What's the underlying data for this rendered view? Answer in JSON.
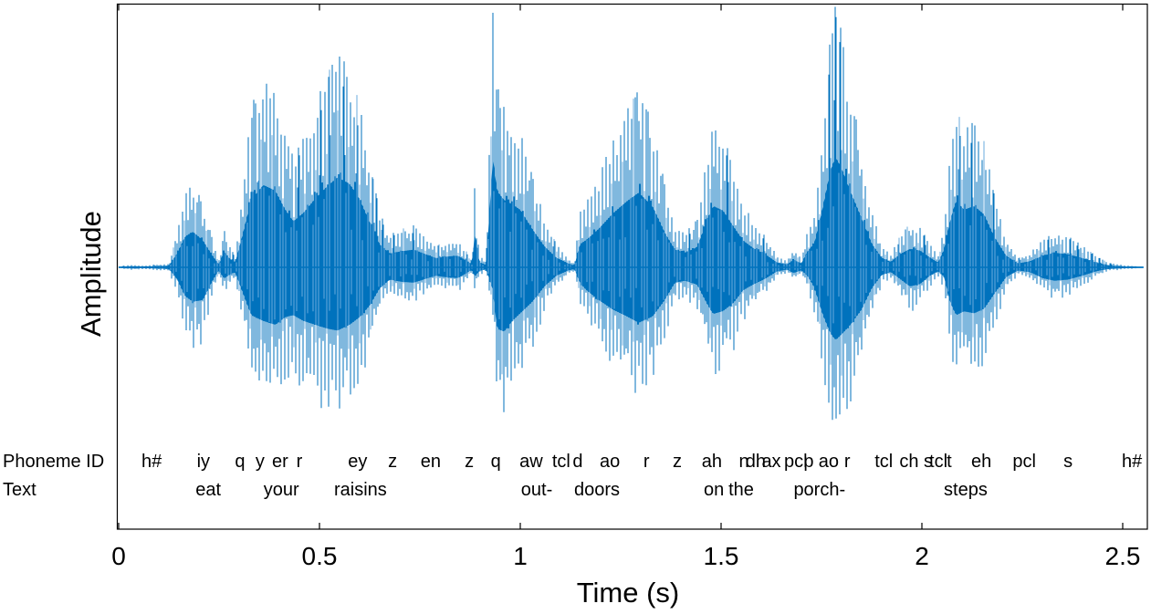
{
  "figure": {
    "background": "#ffffff",
    "border_color": "#000000",
    "text_color": "#000000",
    "waveform_color": "#0072BD",
    "waveform_light_color": "#6aabdd"
  },
  "annotation": {
    "phoneme_header": "Phoneme ID",
    "text_header": "Text"
  },
  "chart_data": {
    "type": "line",
    "subtype": "speech-audio-waveform-with-phoneme-alignment",
    "title": "",
    "xlabel": "Time (s)",
    "ylabel": "Amplitude",
    "xlim": [
      0,
      2.56
    ],
    "ylim": [
      -1,
      1
    ],
    "grid": false,
    "x_ticks": [
      0,
      0.5,
      1,
      1.5,
      2,
      2.5
    ],
    "x_tick_labels": [
      "0",
      "0.5",
      "1",
      "1.5",
      "2",
      "2.5"
    ],
    "phonemes": [
      {
        "t": 0.082,
        "label": "h#"
      },
      {
        "t": 0.211,
        "label": "iy"
      },
      {
        "t": 0.302,
        "label": "q"
      },
      {
        "t": 0.352,
        "label": "y"
      },
      {
        "t": 0.402,
        "label": "er"
      },
      {
        "t": 0.45,
        "label": "r"
      },
      {
        "t": 0.595,
        "label": "ey"
      },
      {
        "t": 0.682,
        "label": "z"
      },
      {
        "t": 0.777,
        "label": "en"
      },
      {
        "t": 0.873,
        "label": "z"
      },
      {
        "t": 0.939,
        "label": "q"
      },
      {
        "t": 1.027,
        "label": "aw"
      },
      {
        "t": 1.102,
        "label": "tcl"
      },
      {
        "t": 1.143,
        "label": "d"
      },
      {
        "t": 1.223,
        "label": "ao"
      },
      {
        "t": 1.314,
        "label": "r"
      },
      {
        "t": 1.391,
        "label": "z"
      },
      {
        "t": 1.477,
        "label": "ah"
      },
      {
        "t": 1.557,
        "label": "n"
      },
      {
        "t": 1.586,
        "label": "dh"
      },
      {
        "t": 1.625,
        "label": "ax"
      },
      {
        "t": 1.686,
        "label": "pcl"
      },
      {
        "t": 1.718,
        "label": "p"
      },
      {
        "t": 1.768,
        "label": "ao"
      },
      {
        "t": 1.814,
        "label": "r"
      },
      {
        "t": 1.905,
        "label": "tcl"
      },
      {
        "t": 1.968,
        "label": "ch"
      },
      {
        "t": 2.016,
        "label": "s"
      },
      {
        "t": 2.041,
        "label": "tcl"
      },
      {
        "t": 2.068,
        "label": "t"
      },
      {
        "t": 2.148,
        "label": "eh"
      },
      {
        "t": 2.255,
        "label": "pcl"
      },
      {
        "t": 2.364,
        "label": "s"
      },
      {
        "t": 2.523,
        "label": "h#"
      }
    ],
    "words": [
      {
        "t": 0.223,
        "label": "eat"
      },
      {
        "t": 0.405,
        "label": "your"
      },
      {
        "t": 0.602,
        "label": "raisins"
      },
      {
        "t": 1.041,
        "label": "out-"
      },
      {
        "t": 1.191,
        "label": "doors"
      },
      {
        "t": 1.482,
        "label": "on"
      },
      {
        "t": 1.55,
        "label": "the"
      },
      {
        "t": 1.745,
        "label": "porch-"
      },
      {
        "t": 2.109,
        "label": "steps"
      }
    ],
    "envelope_points": [
      [
        0.0,
        0.003,
        0.003
      ],
      [
        0.03,
        0.01,
        0.01
      ],
      [
        0.06,
        0.007,
        0.007
      ],
      [
        0.125,
        0.014,
        0.014
      ],
      [
        0.145,
        0.122,
        0.104
      ],
      [
        0.165,
        0.278,
        0.26
      ],
      [
        0.185,
        0.323,
        0.313
      ],
      [
        0.21,
        0.243,
        0.295
      ],
      [
        0.235,
        0.097,
        0.111
      ],
      [
        0.25,
        0.028,
        0.028
      ],
      [
        0.262,
        0.146,
        0.104
      ],
      [
        0.275,
        0.083,
        0.069
      ],
      [
        0.29,
        0.042,
        0.042
      ],
      [
        0.305,
        0.243,
        0.191
      ],
      [
        0.33,
        0.608,
        0.434
      ],
      [
        0.36,
        0.747,
        0.486
      ],
      [
        0.39,
        0.694,
        0.521
      ],
      [
        0.415,
        0.521,
        0.451
      ],
      [
        0.435,
        0.417,
        0.434
      ],
      [
        0.46,
        0.493,
        0.486
      ],
      [
        0.49,
        0.625,
        0.521
      ],
      [
        0.52,
        0.736,
        0.556
      ],
      [
        0.545,
        0.816,
        0.573
      ],
      [
        0.575,
        0.757,
        0.521
      ],
      [
        0.6,
        0.618,
        0.451
      ],
      [
        0.625,
        0.41,
        0.347
      ],
      [
        0.65,
        0.208,
        0.191
      ],
      [
        0.675,
        0.125,
        0.111
      ],
      [
        0.705,
        0.146,
        0.132
      ],
      [
        0.735,
        0.16,
        0.139
      ],
      [
        0.765,
        0.118,
        0.104
      ],
      [
        0.79,
        0.083,
        0.076
      ],
      [
        0.815,
        0.097,
        0.09
      ],
      [
        0.845,
        0.104,
        0.097
      ],
      [
        0.868,
        0.056,
        0.049
      ],
      [
        0.88,
        0.028,
        0.021
      ],
      [
        0.887,
        0.33,
        0.087
      ],
      [
        0.897,
        0.049,
        0.035
      ],
      [
        0.915,
        0.021,
        0.017
      ],
      [
        0.932,
        1.0,
        0.208
      ],
      [
        0.942,
        0.694,
        0.556
      ],
      [
        0.96,
        0.608,
        0.583
      ],
      [
        0.98,
        0.573,
        0.486
      ],
      [
        1.0,
        0.521,
        0.417
      ],
      [
        1.03,
        0.347,
        0.313
      ],
      [
        1.06,
        0.191,
        0.174
      ],
      [
        1.09,
        0.087,
        0.076
      ],
      [
        1.12,
        0.035,
        0.028
      ],
      [
        1.135,
        0.014,
        0.014
      ],
      [
        1.148,
        0.208,
        0.139
      ],
      [
        1.165,
        0.25,
        0.208
      ],
      [
        1.195,
        0.347,
        0.295
      ],
      [
        1.23,
        0.486,
        0.382
      ],
      [
        1.265,
        0.597,
        0.444
      ],
      [
        1.295,
        0.677,
        0.503
      ],
      [
        1.33,
        0.549,
        0.444
      ],
      [
        1.36,
        0.313,
        0.295
      ],
      [
        1.385,
        0.16,
        0.139
      ],
      [
        1.41,
        0.132,
        0.122
      ],
      [
        1.44,
        0.181,
        0.156
      ],
      [
        1.465,
        0.424,
        0.33
      ],
      [
        1.48,
        0.556,
        0.424
      ],
      [
        1.505,
        0.514,
        0.396
      ],
      [
        1.53,
        0.375,
        0.326
      ],
      [
        1.555,
        0.243,
        0.208
      ],
      [
        1.58,
        0.174,
        0.156
      ],
      [
        1.61,
        0.118,
        0.104
      ],
      [
        1.64,
        0.042,
        0.035
      ],
      [
        1.665,
        0.028,
        0.021
      ],
      [
        1.68,
        0.069,
        0.052
      ],
      [
        1.7,
        0.035,
        0.028
      ],
      [
        1.715,
        0.146,
        0.076
      ],
      [
        1.732,
        0.215,
        0.181
      ],
      [
        1.752,
        0.521,
        0.417
      ],
      [
        1.772,
        0.875,
        0.597
      ],
      [
        1.785,
        1.0,
        0.66
      ],
      [
        1.8,
        0.896,
        0.608
      ],
      [
        1.822,
        0.688,
        0.521
      ],
      [
        1.85,
        0.444,
        0.382
      ],
      [
        1.875,
        0.215,
        0.191
      ],
      [
        1.9,
        0.087,
        0.069
      ],
      [
        1.922,
        0.049,
        0.042
      ],
      [
        1.945,
        0.118,
        0.104
      ],
      [
        1.97,
        0.167,
        0.174
      ],
      [
        1.995,
        0.153,
        0.153
      ],
      [
        2.02,
        0.09,
        0.076
      ],
      [
        2.04,
        0.042,
        0.035
      ],
      [
        2.055,
        0.16,
        0.083
      ],
      [
        2.07,
        0.417,
        0.313
      ],
      [
        2.085,
        0.608,
        0.434
      ],
      [
        2.105,
        0.521,
        0.399
      ],
      [
        2.13,
        0.556,
        0.417
      ],
      [
        2.155,
        0.479,
        0.375
      ],
      [
        2.18,
        0.278,
        0.243
      ],
      [
        2.21,
        0.104,
        0.087
      ],
      [
        2.24,
        0.035,
        0.028
      ],
      [
        2.27,
        0.056,
        0.045
      ],
      [
        2.3,
        0.104,
        0.097
      ],
      [
        2.33,
        0.132,
        0.122
      ],
      [
        2.365,
        0.118,
        0.111
      ],
      [
        2.4,
        0.083,
        0.076
      ],
      [
        2.435,
        0.042,
        0.035
      ],
      [
        2.465,
        0.017,
        0.014
      ],
      [
        2.51,
        0.007,
        0.007
      ],
      [
        2.553,
        0.003,
        0.003
      ]
    ]
  }
}
